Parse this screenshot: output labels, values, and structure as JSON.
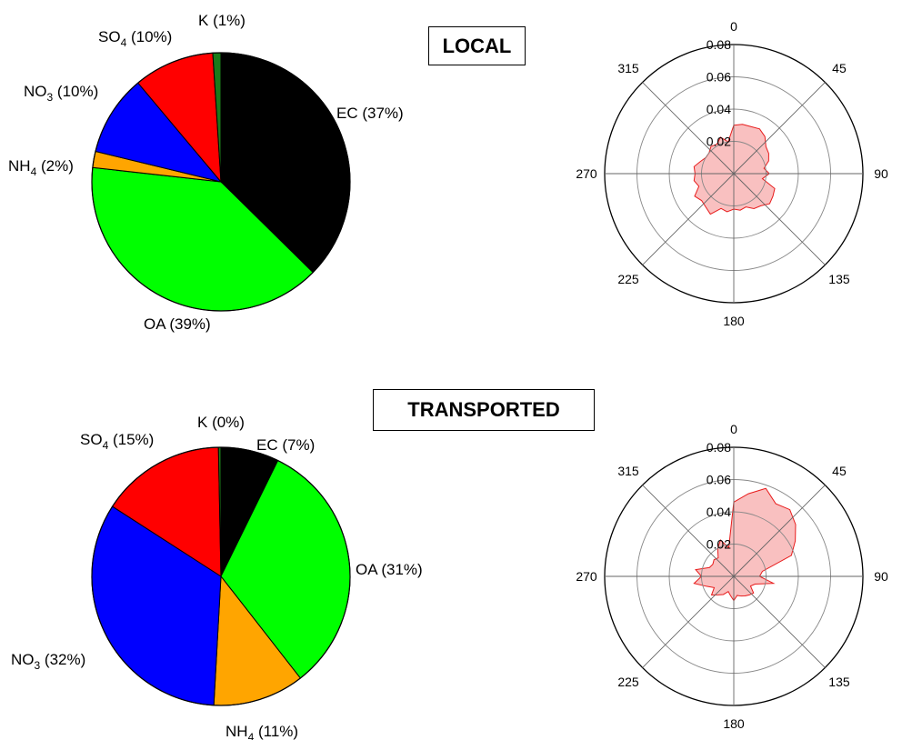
{
  "chart_data": [
    {
      "type": "pie",
      "title": "LOCAL",
      "slices": [
        {
          "name": "EC",
          "value": 37,
          "label_pct": "(37%)",
          "color": "#000000"
        },
        {
          "name": "OA",
          "value": 39,
          "label_pct": "(39%)",
          "color": "#00ff00"
        },
        {
          "name": "NH4",
          "value": 2,
          "label_pct": "(2%)",
          "color": "#ffa500"
        },
        {
          "name": "NO3",
          "value": 10,
          "label_pct": "(10%)",
          "color": "#0000ff"
        },
        {
          "name": "SO4",
          "value": 10,
          "label_pct": "(10%)",
          "color": "#ff0000"
        },
        {
          "name": "K",
          "value": 1,
          "label_pct": "(1%)",
          "color": "#1a7a1a"
        }
      ]
    },
    {
      "type": "polar-area",
      "panel": "LOCAL",
      "angle_ticks": [
        "0",
        "45",
        "90",
        "135",
        "180",
        "225",
        "270",
        "315"
      ],
      "radial_ticks": [
        "0.02",
        "0.04",
        "0.06",
        "0.08"
      ],
      "rmax": 0.08,
      "fill_color": "#f9c0c0",
      "line_color": "#e81c1c",
      "directions_deg": [
        0,
        10,
        20,
        30,
        40,
        50,
        60,
        70,
        80,
        90,
        100,
        110,
        120,
        130,
        140,
        150,
        160,
        170,
        180,
        190,
        200,
        210,
        220,
        230,
        240,
        250,
        260,
        270,
        280,
        290,
        300,
        310,
        320,
        330,
        340,
        350
      ],
      "values": [
        0.03,
        0.031,
        0.031,
        0.032,
        0.03,
        0.026,
        0.025,
        0.023,
        0.019,
        0.022,
        0.018,
        0.027,
        0.028,
        0.029,
        0.026,
        0.025,
        0.022,
        0.023,
        0.022,
        0.024,
        0.023,
        0.029,
        0.027,
        0.026,
        0.028,
        0.023,
        0.025,
        0.024,
        0.025,
        0.022,
        0.02,
        0.02,
        0.022,
        0.021,
        0.024,
        0.02
      ]
    },
    {
      "type": "pie",
      "title": "TRANSPORTED",
      "slices": [
        {
          "name": "EC",
          "value": 7,
          "label_pct": "(7%)",
          "color": "#000000"
        },
        {
          "name": "OA",
          "value": 31,
          "label_pct": "(31%)",
          "color": "#00ff00"
        },
        {
          "name": "NH4",
          "value": 11,
          "label_pct": "(11%)",
          "color": "#ffa500"
        },
        {
          "name": "NO3",
          "value": 32,
          "label_pct": "(32%)",
          "color": "#0000ff"
        },
        {
          "name": "SO4",
          "value": 15,
          "label_pct": "(15%)",
          "color": "#ff0000"
        },
        {
          "name": "K",
          "value": 0.3,
          "label_pct": "(0%)",
          "color": "#1a7a1a"
        }
      ]
    },
    {
      "type": "polar-area",
      "panel": "TRANSPORTED",
      "angle_ticks": [
        "0",
        "45",
        "90",
        "135",
        "180",
        "225",
        "270",
        "315"
      ],
      "radial_ticks": [
        "0.02",
        "0.04",
        "0.06",
        "0.08"
      ],
      "rmax": 0.08,
      "fill_color": "#f9c0c0",
      "line_color": "#e81c1c",
      "directions_deg": [
        0,
        10,
        20,
        30,
        40,
        50,
        60,
        70,
        80,
        90,
        100,
        110,
        120,
        130,
        140,
        150,
        160,
        170,
        180,
        190,
        200,
        210,
        220,
        230,
        240,
        250,
        260,
        270,
        280,
        290,
        300,
        310,
        320,
        330,
        340,
        350
      ],
      "values": [
        0.046,
        0.052,
        0.058,
        0.052,
        0.054,
        0.05,
        0.044,
        0.038,
        0.018,
        0.016,
        0.025,
        0.014,
        0.012,
        0.016,
        0.015,
        0.014,
        0.013,
        0.012,
        0.015,
        0.012,
        0.01,
        0.013,
        0.015,
        0.018,
        0.014,
        0.018,
        0.025,
        0.02,
        0.024,
        0.016,
        0.015,
        0.016,
        0.015,
        0.02,
        0.024,
        0.018
      ]
    }
  ]
}
